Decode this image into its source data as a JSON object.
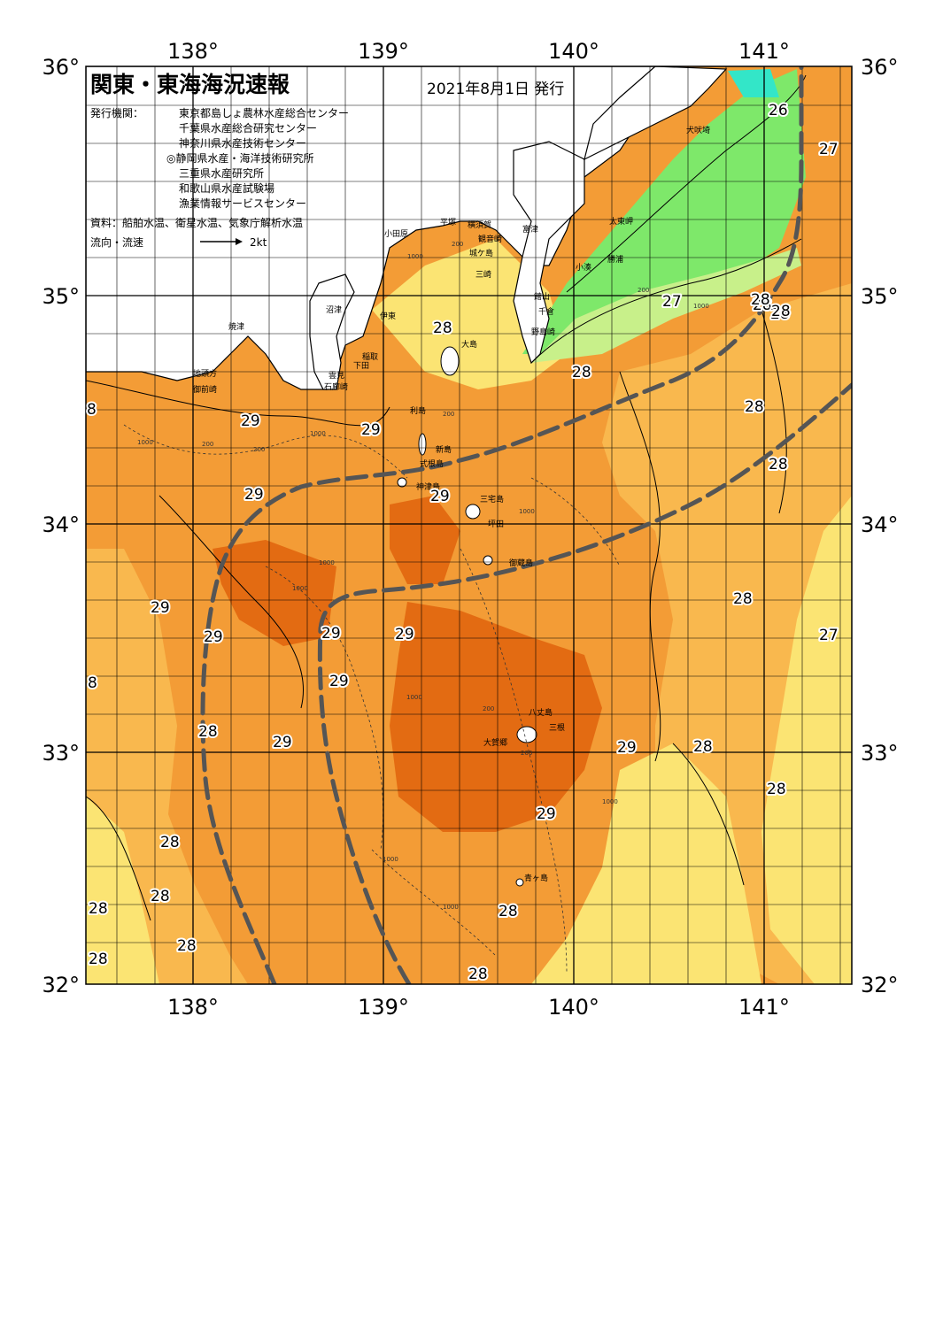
{
  "header": {
    "title": "関東・東海海況速報",
    "date": "2021年8月1日 発行",
    "agencies_label": "発行機関：",
    "agencies": [
      "東京都島しょ農林水産総合センター",
      "千葉県水産総合研究センター",
      "神奈川県水産技術センター",
      "◎静岡県水産・海洋技術研究所",
      "三重県水産研究所",
      "和歌山県水産試験場",
      "漁業情報サービスセンター"
    ],
    "source": "資料：船舶水温、衛星水温、気象庁解析水温",
    "flow_label": "流向・流速",
    "flow_scale": "2kt"
  },
  "axes": {
    "top": [
      "138°",
      "139°",
      "140°",
      "141°"
    ],
    "bottom": [
      "138°",
      "139°",
      "140°",
      "141°"
    ],
    "left": [
      "36°",
      "35°",
      "34°",
      "33°",
      "32°"
    ],
    "right": [
      "36°",
      "35°",
      "34°",
      "33°",
      "32°"
    ]
  },
  "colors": {
    "temp_26": "#7ee86a",
    "temp_27": "#fbe473",
    "temp_28": "#f9b84e",
    "temp_29": "#f39c36",
    "temp_30": "#e36b12",
    "land": "#ffffff",
    "kuroshio": "#555555"
  },
  "places": [
    "犬吠埼",
    "太東岬",
    "小湊",
    "勝浦",
    "館山",
    "千倉",
    "野島崎",
    "富津",
    "横須賀",
    "観音崎",
    "城ケ島",
    "三崎",
    "平塚",
    "小田原",
    "伊東",
    "稲取",
    "下田",
    "雲見",
    "石廊崎",
    "沼津",
    "焼津",
    "地頭方",
    "御前崎",
    "大島",
    "利島",
    "新島",
    "式根島",
    "神津島",
    "三宅島",
    "坪田",
    "御蔵島",
    "八丈島",
    "三根",
    "大賀郷",
    "青ヶ島"
  ],
  "temperature_labels": [
    "26",
    "27",
    "28",
    "28",
    "27",
    "28",
    "28",
    "28",
    "28",
    "29",
    "29",
    "29",
    "29",
    "29",
    "29",
    "29",
    "29",
    "29",
    "29",
    "29",
    "29",
    "28",
    "28",
    "28",
    "28",
    "28",
    "28",
    "28",
    "28",
    "28",
    "28",
    "28",
    "28",
    "28",
    "27",
    "8",
    "8"
  ],
  "depth_labels": [
    "200",
    "1000",
    "200",
    "1000",
    "1000",
    "200",
    "200",
    "1000",
    "1000",
    "1000",
    "1000",
    "1000",
    "200",
    "200",
    "1000",
    "1000",
    "1000",
    "200"
  ]
}
